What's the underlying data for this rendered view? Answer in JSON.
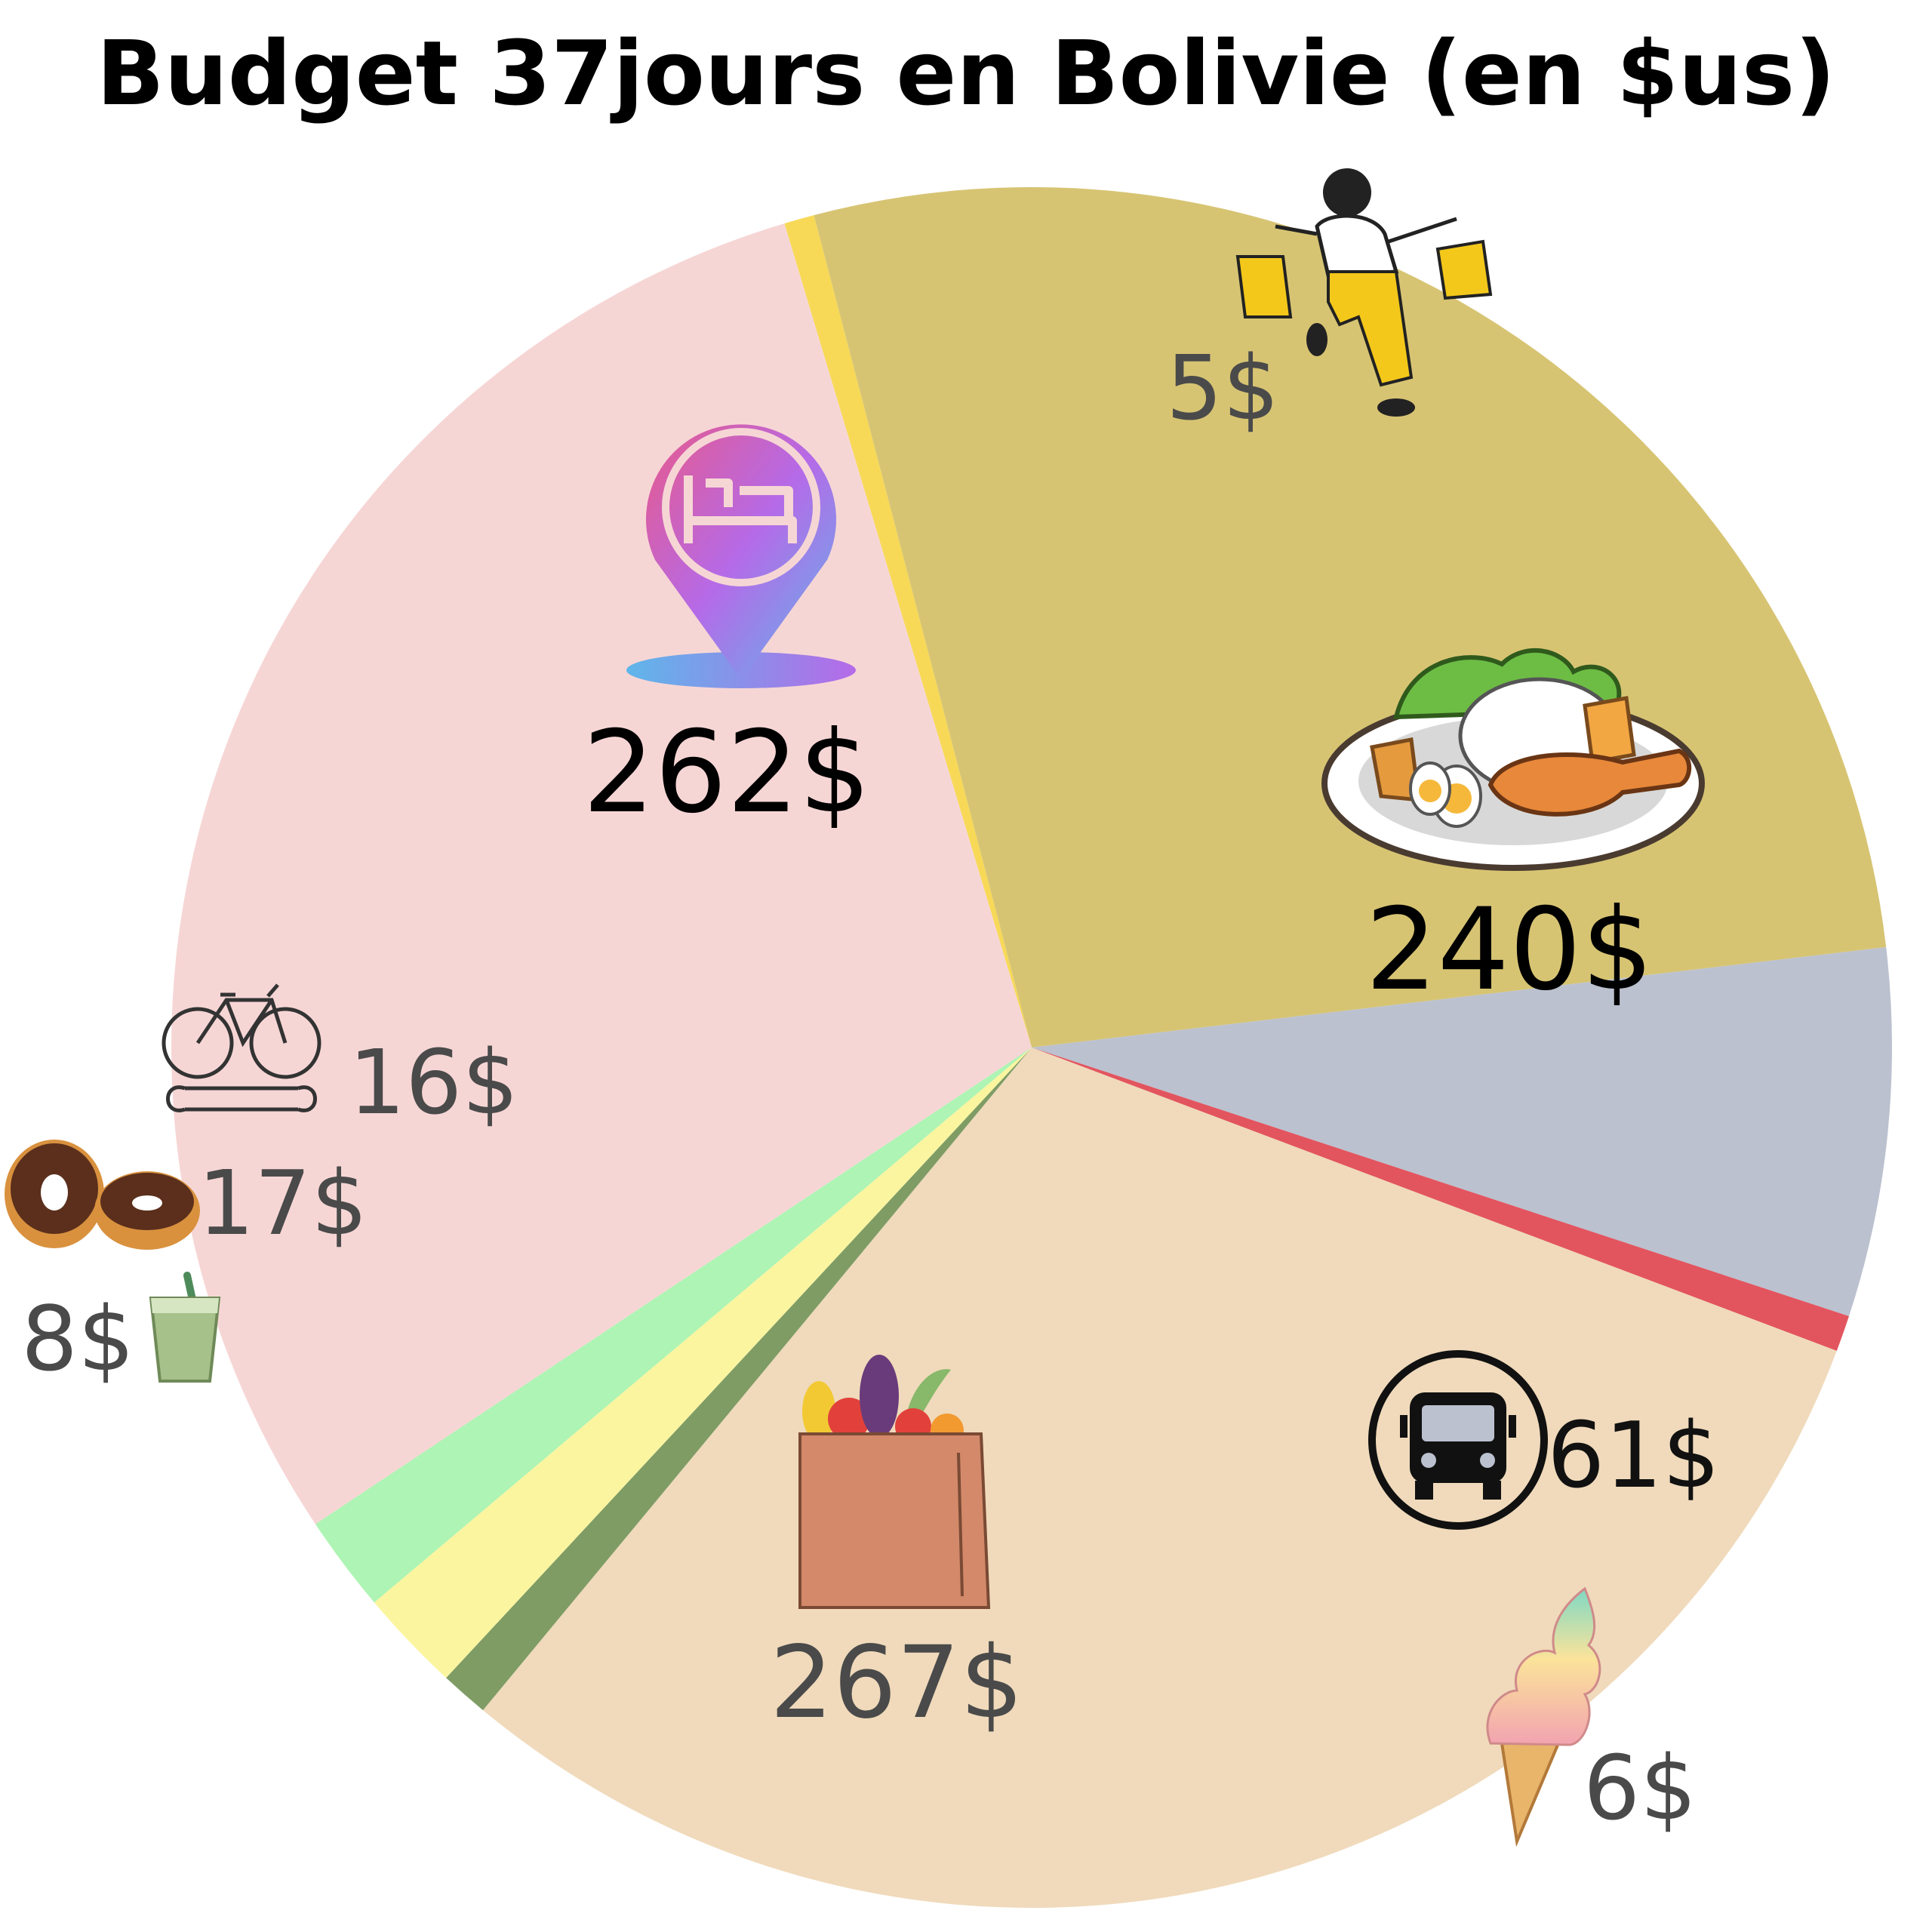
{
  "chart_data": {
    "type": "pie",
    "title": "Budget 37jours en Bolivie (en $us)",
    "slices": [
      {
        "value": 5,
        "label": "5$",
        "color": "#f7d957",
        "icon": "shopping-woman-icon"
      },
      {
        "value": 240,
        "label": "240$",
        "color": "#d7c473",
        "icon": "food-plate-icon"
      },
      {
        "value": 61,
        "label": "61$",
        "color": "#bbc1cf",
        "icon": "bus-icon"
      },
      {
        "value": 6,
        "label": "6$",
        "color": "#e2555f",
        "icon": "ice-cream-icon"
      },
      {
        "value": 267,
        "label": "267$",
        "color": "#f0dabb",
        "icon": "grocery-bag-icon"
      },
      {
        "value": 8,
        "label": "8$",
        "color": "#7f9c65",
        "icon": "drink-cup-icon"
      },
      {
        "value": 17,
        "label": "17$",
        "color": "#fbf5a0",
        "icon": "donuts-icon"
      },
      {
        "value": 16,
        "label": "16$",
        "color": "#aef4b4",
        "icon": "bike-repair-icon"
      },
      {
        "value": 262,
        "label": "262$",
        "color": "#f6d6d5",
        "icon": "hotel-pin-icon"
      }
    ]
  }
}
